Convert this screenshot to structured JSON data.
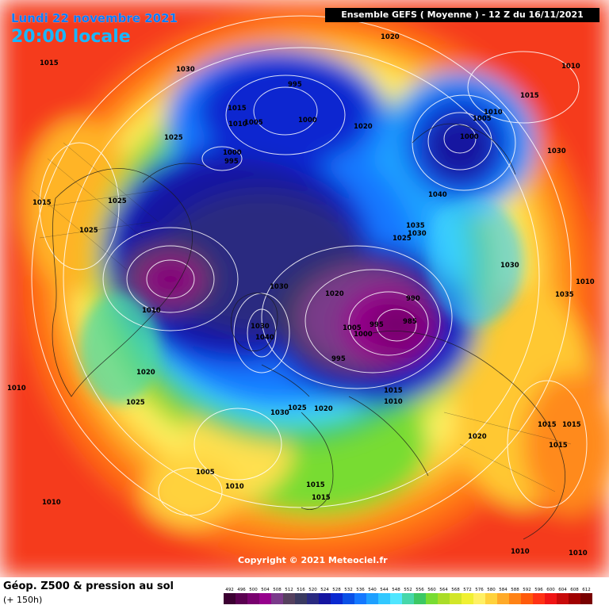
{
  "header": {
    "date_line": "Lundi 22 novembre 2021",
    "time_line": "20:00 locale",
    "ensemble_line": "Ensemble GEFS  ( Moyenne )  -  12 Z du 16/11/2021"
  },
  "footer": {
    "title": "Géop. Z500 & pression au sol",
    "subtitle": "(+ 150h)",
    "copyright": "Copyright © 2021 Meteociel.fr"
  },
  "colorscale": {
    "ticks": [
      "492",
      "496",
      "500",
      "504",
      "508",
      "512",
      "516",
      "520",
      "524",
      "528",
      "532",
      "536",
      "540",
      "544",
      "548",
      "552",
      "556",
      "560",
      "564",
      "568",
      "572",
      "576",
      "580",
      "584",
      "588",
      "592",
      "596",
      "600",
      "604",
      "608",
      "612"
    ],
    "colors": [
      "#3c0032",
      "#5a0050",
      "#78006e",
      "#96008c",
      "#7a3a8a",
      "#55405e",
      "#3a3a60",
      "#2a2a80",
      "#1414a0",
      "#0a28d0",
      "#0a50e6",
      "#1478ff",
      "#1ea0ff",
      "#32c8ff",
      "#50e6ff",
      "#46d7aa",
      "#3cc864",
      "#78dc32",
      "#aadc28",
      "#d2e628",
      "#f0f032",
      "#fff064",
      "#ffd23c",
      "#ffaa28",
      "#ff8214",
      "#ff5a0a",
      "#ff3214",
      "#f01414",
      "#c80a0a",
      "#a00000",
      "#780000"
    ]
  },
  "pressure_labels": [
    {
      "text": "1015"
    },
    {
      "text": "1030"
    },
    {
      "text": "1020"
    },
    {
      "text": "1010"
    },
    {
      "text": "995"
    },
    {
      "text": "1015"
    },
    {
      "text": "1010"
    },
    {
      "text": "1005"
    },
    {
      "text": "1000"
    },
    {
      "text": "1020"
    },
    {
      "text": "1015"
    },
    {
      "text": "1005"
    },
    {
      "text": "1010"
    },
    {
      "text": "1000"
    },
    {
      "text": "1025"
    },
    {
      "text": "1000"
    },
    {
      "text": "995"
    },
    {
      "text": "1030"
    },
    {
      "text": "1015"
    },
    {
      "text": "1025"
    },
    {
      "text": "1040"
    },
    {
      "text": "1025"
    },
    {
      "text": "1035"
    },
    {
      "text": "1030"
    },
    {
      "text": "1025"
    },
    {
      "text": "1030"
    },
    {
      "text": "1030"
    },
    {
      "text": "1010"
    },
    {
      "text": "1020"
    },
    {
      "text": "990"
    },
    {
      "text": "1035"
    },
    {
      "text": "985"
    },
    {
      "text": "1010"
    },
    {
      "text": "1005"
    },
    {
      "text": "995"
    },
    {
      "text": "1000"
    },
    {
      "text": "1030"
    },
    {
      "text": "1040"
    },
    {
      "text": "995"
    },
    {
      "text": "1020"
    },
    {
      "text": "1010"
    },
    {
      "text": "1015"
    },
    {
      "text": "1010"
    },
    {
      "text": "1025"
    },
    {
      "text": "1030"
    },
    {
      "text": "1025"
    },
    {
      "text": "1020"
    },
    {
      "text": "1020"
    },
    {
      "text": "1015"
    },
    {
      "text": "1015"
    },
    {
      "text": "1015"
    },
    {
      "text": "1005"
    },
    {
      "text": "1010"
    },
    {
      "text": "1015"
    },
    {
      "text": "1015"
    },
    {
      "text": "1010"
    },
    {
      "text": "1010"
    },
    {
      "text": "1010"
    }
  ]
}
